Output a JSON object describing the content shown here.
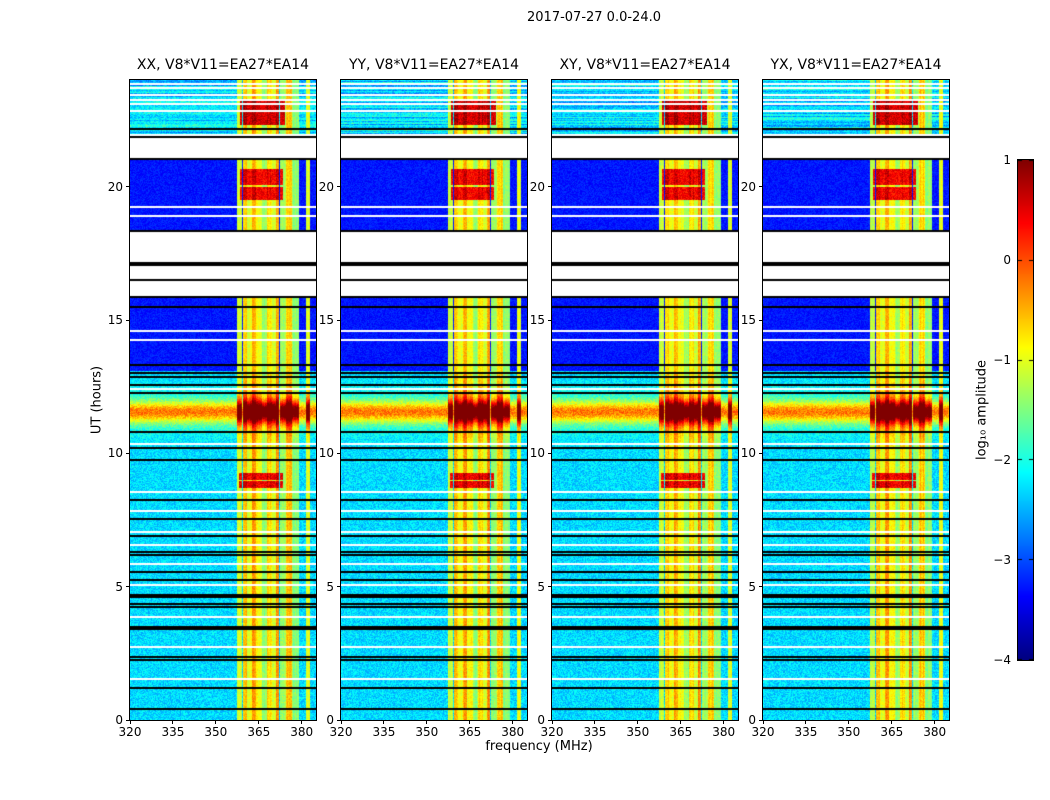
{
  "figure": {
    "title": "2017-07-27 0.0-24.0"
  },
  "chart_data": {
    "type": "heatmap",
    "title": "2017-07-27 0.0-24.0",
    "xlabel": "frequency (MHz)",
    "ylabel": "UT (hours)",
    "x_range": [
      320,
      385
    ],
    "y_range": [
      0,
      24
    ],
    "x_ticks": [
      "320",
      "335",
      "350",
      "365",
      "380"
    ],
    "x_tick_values": [
      320,
      335,
      350,
      365,
      380
    ],
    "y_ticks": [
      "0",
      "5",
      "10",
      "15",
      "20"
    ],
    "y_tick_values": [
      0,
      5,
      10,
      15,
      20
    ],
    "colormap": "jet",
    "grid": false,
    "colorbar": {
      "label": "log₁₀ amplitude",
      "tick_labels": [
        "1",
        "0",
        "−1",
        "−2",
        "−3",
        "−4"
      ],
      "tick_values": [
        1,
        0,
        -1,
        -2,
        -3,
        -4
      ],
      "range": [
        -4,
        1
      ],
      "position": "right"
    },
    "panels": [
      {
        "pol": "XX",
        "title": "XX, V8*V11=EA27*EA14"
      },
      {
        "pol": "YY",
        "title": "YY, V8*V11=EA27*EA14"
      },
      {
        "pol": "XY",
        "title": "XY, V8*V11=EA27*EA14"
      },
      {
        "pol": "YX",
        "title": "YX, V8*V11=EA27*EA14"
      }
    ],
    "features": {
      "background_level": -2.3,
      "noise_spread": 0.6,
      "dark_level": -3.45,
      "dark_segments": [
        [
          13.1,
          15.85
        ],
        [
          18.35,
          21.05
        ]
      ],
      "no_data_gaps": [
        [
          15.85,
          18.35
        ],
        [
          21.05,
          21.85
        ]
      ],
      "top_segment": [
        21.85,
        24
      ],
      "rfi_stripes": [
        [
          357.5,
          359.0,
          1.35
        ],
        [
          359.5,
          361.0,
          1.9
        ],
        [
          361.0,
          362.5,
          1.5
        ],
        [
          362.5,
          364.0,
          2.1
        ],
        [
          364.0,
          366.0,
          1.6
        ],
        [
          366.0,
          368.0,
          1.1
        ],
        [
          368.0,
          369.5,
          1.8
        ],
        [
          369.5,
          371.0,
          1.4
        ],
        [
          371.0,
          372.0,
          2.2
        ],
        [
          372.5,
          374.5,
          1.15
        ],
        [
          374.5,
          376.5,
          1.9
        ],
        [
          376.5,
          379.0,
          1.05
        ],
        [
          381.5,
          383.0,
          1.5
        ]
      ],
      "bright_event": {
        "center": 11.55,
        "sigma": 0.28,
        "amp": 1.6,
        "halo_sigma": 0.55,
        "halo_amp": 0.5
      },
      "red_blobs": [
        {
          "t": [
            8.7,
            8.95
          ],
          "f": [
            358.0,
            373.5
          ],
          "level": 0.15
        },
        {
          "t": [
            9.0,
            9.25
          ],
          "f": [
            358.0,
            373.5
          ],
          "level": 0.15
        },
        {
          "t": [
            19.5,
            20.0
          ],
          "f": [
            358.5,
            373.5
          ],
          "level": 0.1
        },
        {
          "t": [
            20.05,
            20.65
          ],
          "f": [
            358.5,
            373.5
          ],
          "level": 0.1
        },
        {
          "t": [
            22.3,
            23.2
          ],
          "f": [
            358.5,
            374.0
          ],
          "level": 0.3
        }
      ],
      "black_lines": [
        0.4,
        1.2,
        2.25,
        2.35,
        3.4,
        3.5,
        4.25,
        4.35,
        4.6,
        4.7,
        5.25,
        5.55,
        6.2,
        6.3,
        6.9,
        7.55,
        8.25,
        9.75,
        10.2,
        10.8,
        12.25,
        12.55,
        12.85,
        13.0,
        13.3,
        15.5,
        15.85,
        16.5,
        17.05,
        17.15,
        18.35,
        21.05,
        21.85,
        22.15
      ],
      "white_lines": [
        1.55,
        2.75,
        3.85,
        5.05,
        5.85,
        6.55,
        7.05,
        7.85,
        8.55,
        10.35,
        12.4,
        14.25,
        14.6,
        18.9,
        19.25,
        21.95,
        22.85,
        23.1,
        23.25,
        23.45,
        23.7,
        23.85
      ]
    }
  }
}
